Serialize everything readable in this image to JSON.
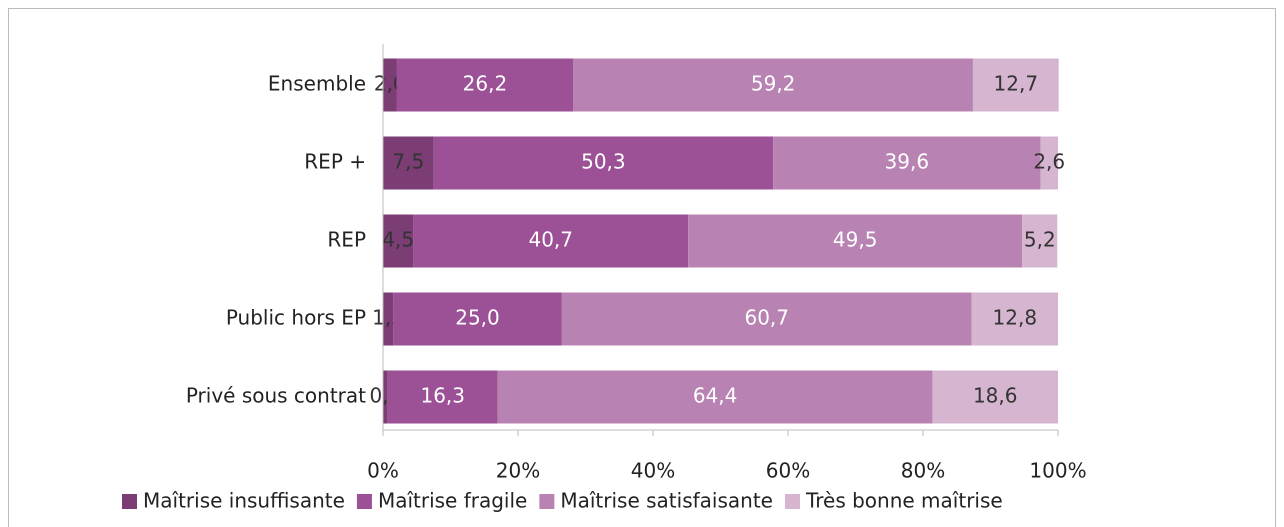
{
  "chart_data": {
    "type": "stacked-bar-horizontal",
    "categories": [
      "Ensemble",
      "REP +",
      "REP",
      "Public hors EP",
      "Privé sous contrat"
    ],
    "series": [
      {
        "name": "Maîtrise insuffisante",
        "color": "#7b3d74",
        "values": [
          2.0,
          7.5,
          4.5,
          1.5,
          0.7
        ],
        "value_labels": [
          "2,0",
          "7,5",
          "4,5",
          "1,5",
          "0,7"
        ]
      },
      {
        "name": "Maîtrise fragile",
        "color": "#9c5196",
        "values": [
          26.2,
          50.3,
          40.7,
          25.0,
          16.3
        ],
        "value_labels": [
          "26,2",
          "50,3",
          "40,7",
          "25,0",
          "16,3"
        ]
      },
      {
        "name": "Maîtrise satisfaisante",
        "color": "#b883b3",
        "values": [
          59.2,
          39.6,
          49.5,
          60.7,
          64.4
        ],
        "value_labels": [
          "59,2",
          "39,6",
          "49,5",
          "60,7",
          "64,4"
        ]
      },
      {
        "name": "Très bonne maîtrise",
        "color": "#d5b5d0",
        "values": [
          12.7,
          2.6,
          5.2,
          12.8,
          18.6
        ],
        "value_labels": [
          "12,7",
          "2,6",
          "5,2",
          "12,8",
          "18,6"
        ]
      }
    ],
    "xlim": [
      0,
      100
    ],
    "xticks": [
      {
        "value": 0,
        "label": "0%"
      },
      {
        "value": 20,
        "label": "20%"
      },
      {
        "value": 40,
        "label": "40%"
      },
      {
        "value": 60,
        "label": "60%"
      },
      {
        "value": 80,
        "label": "80%"
      },
      {
        "value": 100,
        "label": "100%"
      }
    ],
    "legend": "bottom"
  }
}
